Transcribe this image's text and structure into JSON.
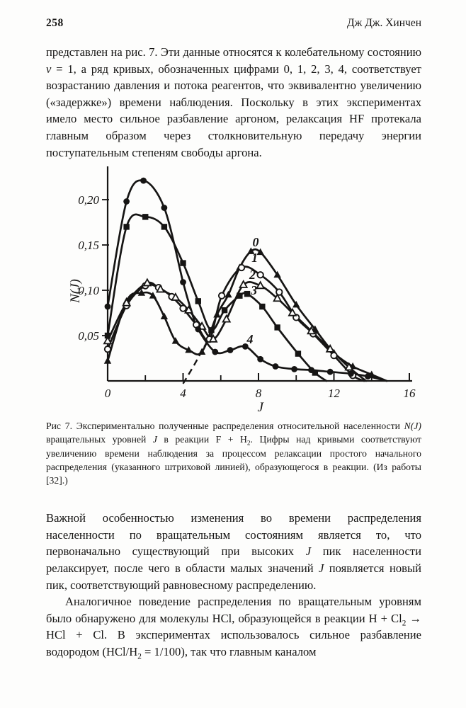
{
  "header": {
    "page_number": "258",
    "running_head": "Дж Дж. Хинчен"
  },
  "content": {
    "paragraph1": [
      {
        "t": "представлен на рис. 7. Эти данные относятся к колебательному состоянию "
      },
      {
        "t": "v",
        "i": true
      },
      {
        "t": " = 1, а ряд кривых, обозначенных цифрами 0, 1, 2, 3, 4, соответствует возрастанию давления и потока реагентов, что эквивалентно увеличению («задержке») времени наблюдения. Поскольку в этих экспериментах имело место сильное разбавление аргоном, релаксация HF протекала главным образом через столкновительную передачу энергии поступательным степеням свободы аргона."
      }
    ],
    "paragraph2": [
      {
        "t": "Важной особенностью изменения во времени распределения населенности по вращательным состояниям является то, что первоначально существующий при высоких "
      },
      {
        "t": "J",
        "i": true
      },
      {
        "t": " пик населенности релаксирует, после чего в области малых значений "
      },
      {
        "t": "J",
        "i": true
      },
      {
        "t": " появляется новый пик, соответствующий равновесному распределению."
      }
    ],
    "paragraph3": [
      {
        "t": "Аналогичное поведение распределения по вращательным уровням было обнаружено для молекулы HCl, образующейся в реакции H + Cl"
      },
      {
        "t": "2",
        "sub": true
      },
      {
        "t": " → HCl + Cl. В экспериментах использовалось сильное разбавление водородом (HCl/H"
      },
      {
        "t": "2",
        "sub": true
      },
      {
        "t": " = 1/100), так что главным каналом"
      }
    ]
  },
  "figure": {
    "caption_runs": [
      {
        "t": "Рис 7. Экспериментально полученные распределения относительной населенности "
      },
      {
        "t": "N(J)",
        "i": true
      },
      {
        "t": " вращательных уровней "
      },
      {
        "t": "J",
        "i": true
      },
      {
        "t": " в реакции F + H"
      },
      {
        "t": "2",
        "sub": true
      },
      {
        "t": ". Цифры над кривыми соответствуют увеличению времени наблюдения за процессом релаксации простого начального распределения (указанного штриховой линией), образующегося в реакции. (Из работы [32].)"
      }
    ]
  },
  "chart_data": {
    "type": "line",
    "title": "",
    "xlabel": "J",
    "ylabel": "N(J)",
    "xlim": [
      0,
      16.2
    ],
    "ylim": [
      0,
      0.235
    ],
    "grid": false,
    "ink_color": "#161514",
    "paper_color": "#fdfdfc",
    "x_axis": {
      "label": "J",
      "major": [
        {
          "v": 0,
          "t": "0",
          "no_tick": true
        },
        {
          "v": 4,
          "t": "4"
        },
        {
          "v": 8,
          "t": "8"
        },
        {
          "v": 12,
          "t": "12"
        },
        {
          "v": 16,
          "t": "16"
        }
      ],
      "minor": [
        2,
        6,
        10,
        14
      ]
    },
    "y_axis": {
      "label": "N(J)",
      "ticks": [
        {
          "v": 0.05,
          "t": "0,05"
        },
        {
          "v": 0.1,
          "t": "0,10"
        },
        {
          "v": 0.15,
          "t": "0,15"
        },
        {
          "v": 0.2,
          "t": "0,20"
        }
      ]
    },
    "initial_distribution_dashed": {
      "note": "начальное распределение (штриховая линия)",
      "points": [
        [
          4.0,
          -0.003
        ],
        [
          4.6,
          0.018
        ],
        [
          5.05,
          0.035
        ],
        [
          5.45,
          0.049
        ]
      ]
    },
    "series": [
      {
        "name": "0",
        "marker": "triangle-filled",
        "label": "0",
        "label_pos": [
          7.85,
          0.153
        ],
        "points": [
          [
            0,
            0.022,
            1
          ],
          [
            1,
            0.088,
            1
          ],
          [
            1.8,
            0.097,
            1
          ],
          [
            2.4,
            0.094,
            1
          ],
          [
            3,
            0.071,
            1
          ],
          [
            3.6,
            0.044,
            1
          ],
          [
            4.3,
            0.034,
            1
          ],
          [
            5,
            0.032,
            1
          ],
          [
            5.8,
            0.073,
            1
          ],
          [
            6.4,
            0.095,
            1
          ],
          [
            7,
            0.125,
            1
          ],
          [
            7.6,
            0.143,
            1
          ],
          [
            8.1,
            0.142,
            1
          ],
          [
            9,
            0.117,
            1
          ],
          [
            10,
            0.084,
            1
          ],
          [
            11,
            0.057,
            1
          ],
          [
            12,
            0.031,
            1
          ],
          [
            13,
            0.016,
            1
          ],
          [
            14,
            0.007,
            1
          ],
          [
            14.8,
            0,
            0
          ]
        ]
      },
      {
        "name": "1",
        "marker": "circle-open",
        "label": "1",
        "label_pos": [
          7.8,
          0.136
        ],
        "points": [
          [
            0,
            0.035,
            1
          ],
          [
            1,
            0.083,
            1
          ],
          [
            2,
            0.105,
            1
          ],
          [
            2.7,
            0.103,
            1
          ],
          [
            3.4,
            0.093,
            1
          ],
          [
            4,
            0.08,
            1
          ],
          [
            4.7,
            0.062,
            1
          ],
          [
            5.4,
            0.046,
            1
          ],
          [
            6.05,
            0.094,
            1
          ],
          [
            7.1,
            0.125,
            1
          ],
          [
            8.1,
            0.117,
            1
          ],
          [
            9.1,
            0.098,
            1
          ],
          [
            10,
            0.07,
            1
          ],
          [
            10.9,
            0.052,
            1
          ],
          [
            12,
            0.028,
            1
          ],
          [
            13,
            0.006,
            1
          ],
          [
            13.6,
            0,
            0
          ]
        ]
      },
      {
        "name": "2",
        "marker": "triangle-open",
        "label": "2",
        "label_pos": [
          7.68,
          0.117
        ],
        "points": [
          [
            0,
            0.044,
            1
          ],
          [
            1,
            0.086,
            1
          ],
          [
            2.1,
            0.108,
            1
          ],
          [
            2.8,
            0.101,
            1
          ],
          [
            3.6,
            0.092,
            1
          ],
          [
            4.3,
            0.078,
            1
          ],
          [
            5,
            0.06,
            1
          ],
          [
            5.6,
            0.046,
            1
          ],
          [
            6.3,
            0.068,
            1
          ],
          [
            7.2,
            0.106,
            1
          ],
          [
            8.1,
            0.105,
            1
          ],
          [
            9,
            0.091,
            1
          ],
          [
            9.8,
            0.075,
            1
          ],
          [
            10.8,
            0.055,
            1
          ],
          [
            11.8,
            0.035,
            1
          ],
          [
            12.8,
            0.015,
            1
          ],
          [
            13.7,
            0,
            0
          ]
        ]
      },
      {
        "name": "3",
        "marker": "square-filled",
        "label": "3",
        "label_pos": [
          7.76,
          0.1
        ],
        "points": [
          [
            0,
            0.05,
            1
          ],
          [
            1,
            0.17,
            1
          ],
          [
            2,
            0.181,
            1
          ],
          [
            3,
            0.17,
            1
          ],
          [
            4,
            0.13,
            1
          ],
          [
            4.8,
            0.088,
            1
          ],
          [
            5.5,
            0.056,
            1
          ],
          [
            6.2,
            0.078,
            1
          ],
          [
            7,
            0.094,
            1
          ],
          [
            7.4,
            0.096,
            1
          ],
          [
            8.2,
            0.082,
            1
          ],
          [
            9,
            0.059,
            1
          ],
          [
            10.1,
            0.03,
            1
          ],
          [
            11,
            0.009,
            1
          ],
          [
            11.6,
            0,
            0
          ]
        ]
      },
      {
        "name": "4",
        "marker": "circle-filled",
        "label": "4",
        "label_pos": [
          7.55,
          0.046
        ],
        "points": [
          [
            0,
            0.082,
            1
          ],
          [
            1,
            0.198,
            1
          ],
          [
            1.9,
            0.221,
            1
          ],
          [
            3,
            0.191,
            1
          ],
          [
            4,
            0.109,
            1
          ],
          [
            4.4,
            0.08,
            0
          ],
          [
            4.8,
            0.057,
            1
          ],
          [
            5.7,
            0.032,
            1
          ],
          [
            6.5,
            0.034,
            1
          ],
          [
            7.3,
            0.038,
            1
          ],
          [
            8.1,
            0.024,
            1
          ],
          [
            8.9,
            0.016,
            1
          ],
          [
            9.9,
            0.013,
            1
          ],
          [
            10.8,
            0.012,
            1
          ],
          [
            11.8,
            0.01,
            1
          ],
          [
            12.9,
            0.008,
            1
          ],
          [
            13.8,
            0.005,
            1
          ],
          [
            14.8,
            0,
            0
          ]
        ]
      }
    ]
  }
}
